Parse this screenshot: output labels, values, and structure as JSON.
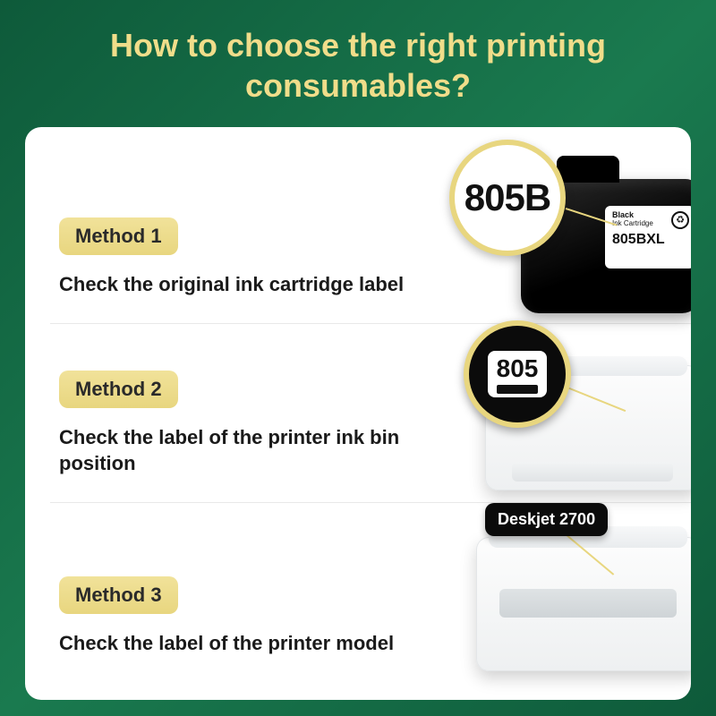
{
  "colors": {
    "bg_gradient_start": "#0e5a3a",
    "bg_gradient_end": "#0e5a3a",
    "title_color": "#f0dd8a",
    "panel_bg": "#ffffff",
    "pill_bg_top": "#f1e29a",
    "pill_bg_bottom": "#e8d67f",
    "text_color": "#1a1a1a",
    "callout_ring": "#e8d67f",
    "dark_callout_bg": "#0b0b0b"
  },
  "title": "How to choose the right printing consumables?",
  "methods": [
    {
      "pill": "Method 1",
      "desc": "Check the original ink cartridge label",
      "callout_number": "805B",
      "cartridge_label_brand": "Black",
      "cartridge_label_sub": "Ink Cartridge",
      "cartridge_label_model": "805BXL"
    },
    {
      "pill": "Method 2",
      "desc": "Check the label of the printer ink bin position",
      "callout_number": "805"
    },
    {
      "pill": "Method 3",
      "desc": "Check the label of the printer model",
      "model_label": "Deskjet 2700"
    }
  ]
}
